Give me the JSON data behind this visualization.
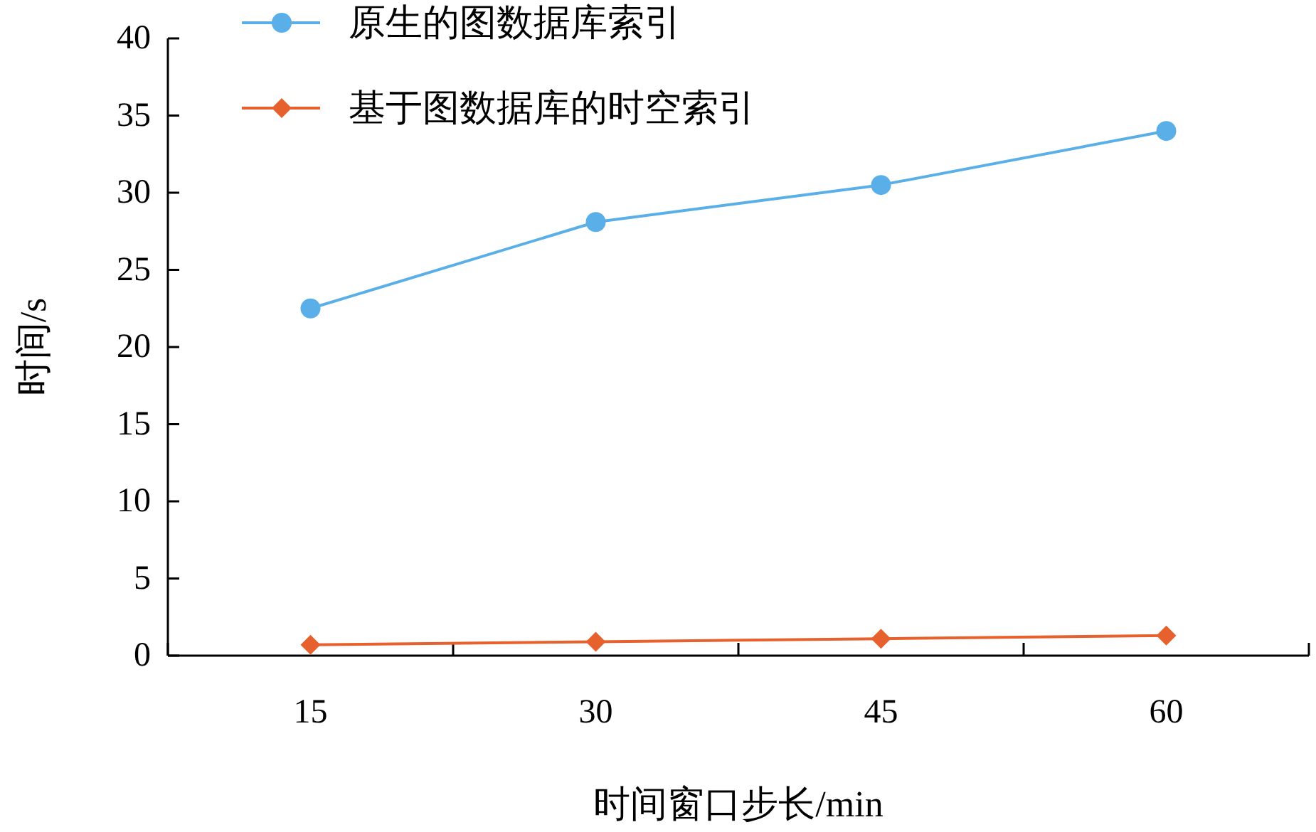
{
  "chart_data": {
    "type": "line",
    "xlabel": "时间窗口步长/min",
    "ylabel": "时间/s",
    "categories": [
      "15",
      "30",
      "45",
      "60"
    ],
    "series": [
      {
        "name": "原生的图数据库索引",
        "color": "#5aafe9",
        "marker": "circle",
        "values": [
          22.5,
          28.1,
          30.5,
          34.0
        ]
      },
      {
        "name": "基于图数据库的时空索引",
        "color": "#e6612d",
        "marker": "diamond",
        "values": [
          0.7,
          0.9,
          1.1,
          1.3
        ]
      }
    ],
    "ylim": [
      0,
      40
    ],
    "yticks": [
      0,
      5,
      10,
      15,
      20,
      25,
      30,
      35,
      40
    ],
    "grid": false,
    "legend": "top left"
  }
}
